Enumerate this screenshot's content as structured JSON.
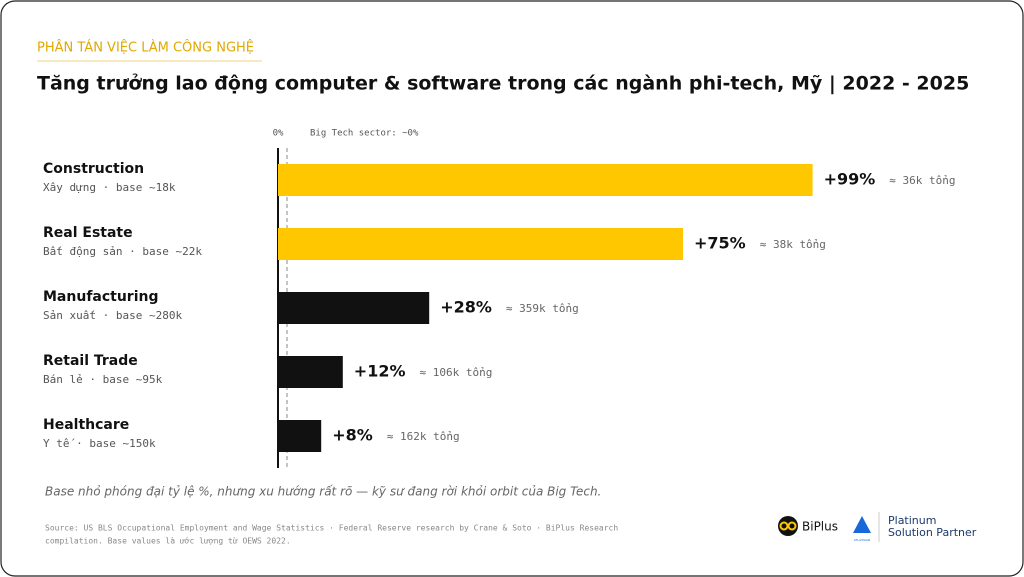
{
  "kicker": "PHÂN TÁN VIỆC LÀM CÔNG NGHỆ",
  "chart_data": {
    "type": "bar",
    "orientation": "horizontal",
    "title": "Tăng trưởng lao động computer & software trong các ngành phi-tech, Mỹ | 2022 - 2025",
    "categories": [
      "Construction",
      "Real Estate",
      "Manufacturing",
      "Retail Trade",
      "Healthcare"
    ],
    "subtitles": [
      "Xây dựng · base ~18k",
      "Bất động sản · base ~22k",
      "Sản xuất · base ~280k",
      "Bán lẻ · base ~95k",
      "Y tế · base ~150k"
    ],
    "values": [
      99,
      75,
      28,
      12,
      8
    ],
    "value_labels": [
      "+99%",
      "+75%",
      "+28%",
      "+12%",
      "+8%"
    ],
    "notes": [
      "≈ 36k tổng",
      "≈ 38k tổng",
      "≈ 359k tổng",
      "≈ 106k tổng",
      "≈ 162k tổng"
    ],
    "colors": [
      "#ffc700",
      "#ffc700",
      "#111111",
      "#111111",
      "#111111"
    ],
    "xlim": [
      0,
      100
    ],
    "xticks": [
      {
        "value": 0,
        "label": "0%"
      }
    ],
    "reference_line": {
      "value": 0,
      "label": "Big Tech sector: ~0%"
    },
    "footnote": "Base nhỏ phóng đại tỷ lệ %, nhưng xu hướng rất rõ — kỹ sư đang rời khỏi orbit của Big Tech.",
    "source": [
      "Source: US BLS Occupational Employment and Wage Statistics · Federal Reserve research by Crane & Soto · BiPlus Research",
      "compilation. Base values là ước lượng từ OEWS 2022."
    ]
  },
  "logos": {
    "biplus": "BiPlus",
    "atlassian": "ATLASSIAN",
    "partner": [
      "Platinum",
      "Solution Partner"
    ]
  }
}
